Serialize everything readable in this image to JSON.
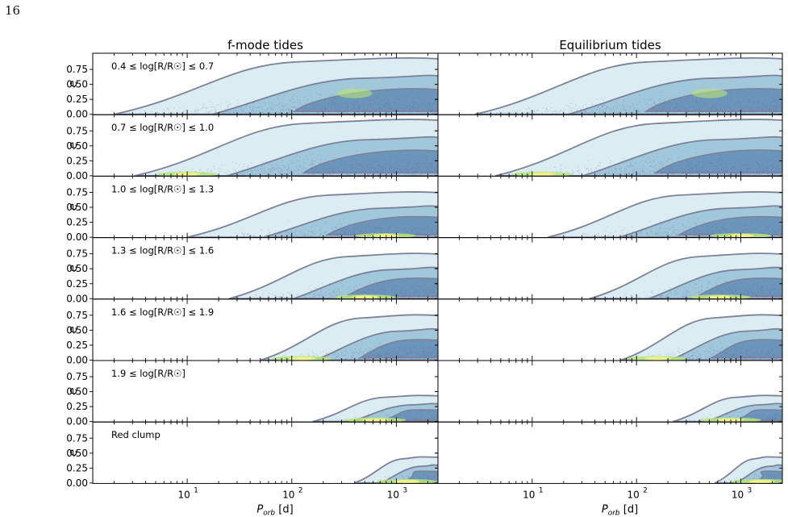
{
  "page": {
    "number": "16"
  },
  "chart_data": {
    "type": "scatter",
    "subtype": "density-contour-grid",
    "columns": [
      {
        "title": "f-mode tides"
      },
      {
        "title": "Equilibrium tides"
      }
    ],
    "rows": [
      {
        "label": "0.4 ≤ log[R/R☉] ≤ 0.7",
        "pmin_log": 0.3,
        "heat_center_log": 2.6,
        "density": "high",
        "hot_bottom": false
      },
      {
        "label": "0.7 ≤ log[R/R☉] ≤ 1.0",
        "pmin_log": 0.5,
        "heat_center_log": 1.0,
        "density": "high",
        "hot_bottom": true
      },
      {
        "label": "1.0 ≤ log[R/R☉] ≤ 1.3",
        "pmin_log": 1.0,
        "heat_center_log": 2.9,
        "density": "medium",
        "hot_bottom": true
      },
      {
        "label": "1.3 ≤ log[R/R☉] ≤ 1.6",
        "pmin_log": 1.4,
        "heat_center_log": 2.7,
        "density": "medium",
        "hot_bottom": true
      },
      {
        "label": "1.6 ≤ log[R/R☉] ≤ 1.9",
        "pmin_log": 1.7,
        "heat_center_log": 2.1,
        "density": "medium",
        "hot_bottom": true
      },
      {
        "label": "1.9 ≤ log[R/R☉]",
        "pmin_log": 2.2,
        "heat_center_log": 2.8,
        "density": "low",
        "hot_bottom": true
      },
      {
        "label": "Red clump",
        "pmin_log": 2.6,
        "heat_center_log": 3.1,
        "density": "low",
        "hot_bottom": true
      }
    ],
    "xlabel": "P_orb [d]",
    "ylabel": "e",
    "xscale": "log",
    "xlim": [
      1.25,
      2500
    ],
    "ylim": [
      0,
      1.0
    ],
    "yticks": [
      "0.00",
      "0.25",
      "0.50",
      "0.75"
    ],
    "xticks": [
      "10^1",
      "10^2",
      "10^3"
    ],
    "colors": {
      "scatter": "#6b5fa8",
      "contour_line": "#7d8199",
      "fill_outer": "#cfe7ee",
      "fill_inner": "#6fa8c6",
      "fill_core": "#3f6c9e",
      "hot": "#b9e47c",
      "hot_core": "#eff28a"
    }
  }
}
